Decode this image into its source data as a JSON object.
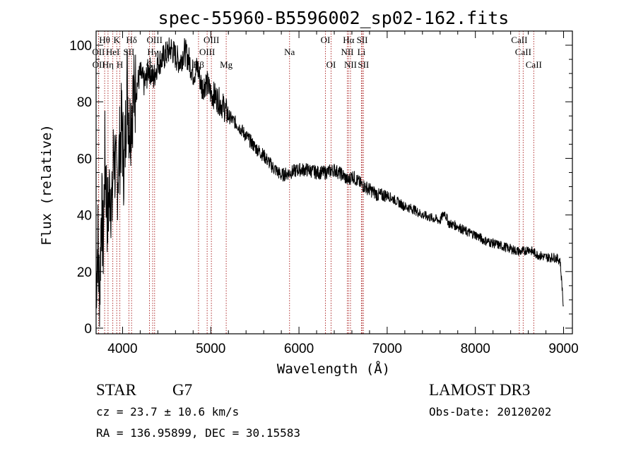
{
  "chart_data": {
    "type": "line",
    "title": "spec-55960-B5596002_sp02-162.fits",
    "xlabel": "Wavelength (Å)",
    "ylabel": "Flux (relative)",
    "xlim": [
      3700,
      9100
    ],
    "ylim": [
      -2,
      105
    ],
    "xticks": [
      4000,
      5000,
      6000,
      7000,
      8000,
      9000
    ],
    "yticks": [
      0,
      20,
      40,
      60,
      80,
      100
    ],
    "series": [
      {
        "name": "flux",
        "x": [
          3700,
          3720,
          3740,
          3760,
          3780,
          3800,
          3830,
          3860,
          3880,
          3900,
          3930,
          3960,
          3990,
          4020,
          4050,
          4080,
          4110,
          4150,
          4200,
          4250,
          4300,
          4350,
          4400,
          4450,
          4500,
          4550,
          4600,
          4650,
          4700,
          4750,
          4800,
          4850,
          4900,
          4950,
          5000,
          5050,
          5100,
          5150,
          5200,
          5300,
          5400,
          5500,
          5600,
          5700,
          5800,
          5900,
          6000,
          6100,
          6200,
          6300,
          6400,
          6500,
          6560,
          6600,
          6700,
          6800,
          6900,
          7000,
          7100,
          7200,
          7300,
          7400,
          7500,
          7600,
          7650,
          7700,
          7800,
          7900,
          8000,
          8100,
          8200,
          8300,
          8400,
          8500,
          8540,
          8600,
          8700,
          8800,
          8900,
          8960,
          8990,
          9000
        ],
        "y": [
          15,
          32,
          8,
          45,
          28,
          62,
          38,
          52,
          40,
          65,
          50,
          60,
          72,
          55,
          88,
          70,
          80,
          84,
          90,
          86,
          92,
          88,
          94,
          95,
          97,
          99,
          96,
          94,
          98,
          95,
          90,
          92,
          85,
          87,
          83,
          82,
          80,
          78,
          75,
          72,
          68,
          64,
          61,
          57,
          54,
          55,
          56,
          56,
          55,
          55,
          56,
          54,
          52,
          54,
          51,
          49,
          47,
          47,
          45,
          43,
          42,
          40,
          39,
          38,
          41,
          37,
          36,
          34,
          33,
          31,
          30,
          29,
          28,
          27,
          27,
          28,
          26,
          25,
          25,
          24,
          12,
          5
        ]
      }
    ],
    "lines": [
      {
        "name": "Hθ",
        "x": 3797,
        "row": 0
      },
      {
        "name": "OII",
        "x": 3727,
        "row": 1
      },
      {
        "name": "OII",
        "x": 3729,
        "row": 2
      },
      {
        "name": "Hη",
        "x": 3835,
        "row": 2
      },
      {
        "name": "HeI",
        "x": 3889,
        "row": 1
      },
      {
        "name": "K",
        "x": 3934,
        "row": 0
      },
      {
        "name": "H",
        "x": 3969,
        "row": 2
      },
      {
        "name": "SII",
        "x": 4072,
        "row": 1
      },
      {
        "name": "Hδ",
        "x": 4102,
        "row": 0
      },
      {
        "name": "G",
        "x": 4305,
        "row": 2
      },
      {
        "name": "OIII",
        "x": 4363,
        "row": 0
      },
      {
        "name": "Hγ",
        "x": 4341,
        "row": 1
      },
      {
        "name": "Hβ",
        "x": 4861,
        "row": 2
      },
      {
        "name": "OIII",
        "x": 4959,
        "row": 1
      },
      {
        "name": "OIII",
        "x": 5007,
        "row": 0
      },
      {
        "name": "Mg",
        "x": 5175,
        "row": 2
      },
      {
        "name": "Na",
        "x": 5893,
        "row": 1
      },
      {
        "name": "OI",
        "x": 6300,
        "row": 0
      },
      {
        "name": "OI",
        "x": 6364,
        "row": 2
      },
      {
        "name": "Hα",
        "x": 6563,
        "row": 0
      },
      {
        "name": "NII",
        "x": 6548,
        "row": 1
      },
      {
        "name": "NII",
        "x": 6584,
        "row": 2
      },
      {
        "name": "SII",
        "x": 6717,
        "row": 0
      },
      {
        "name": "Li",
        "x": 6708,
        "row": 1
      },
      {
        "name": "SII",
        "x": 6731,
        "row": 2
      },
      {
        "name": "CaII",
        "x": 8498,
        "row": 0
      },
      {
        "name": "CaII",
        "x": 8542,
        "row": 1
      },
      {
        "name": "CaII",
        "x": 8662,
        "row": 2
      }
    ]
  },
  "info": {
    "object_class": "STAR",
    "subclass": "G7",
    "survey": "LAMOST DR3",
    "cz": "cz = 23.7 ± 10.6 km/s",
    "obs_date": "Obs-Date: 20120202",
    "radec": "RA = 136.95899, DEC =  30.15583"
  },
  "colors": {
    "line_marker": "#b03030",
    "spectrum": "#000000"
  }
}
